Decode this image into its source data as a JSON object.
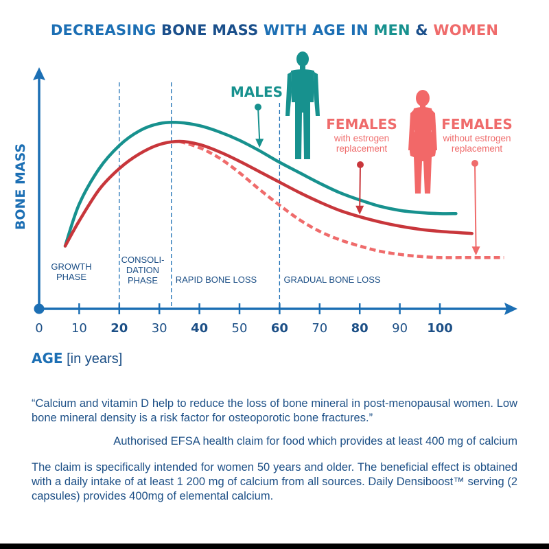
{
  "title": {
    "part1": "DECREASING ",
    "part2": "BONE MASS",
    "part3": " WITH AGE IN ",
    "part4": "MEN",
    "part5": " & ",
    "part6": "WOMEN"
  },
  "colors": {
    "axis": "#1c6fb4",
    "text": "#1c4f86",
    "males": "#17918e",
    "females_estrogen": "#c8363b",
    "females_no_estrogen": "#ef6b6b"
  },
  "icons": [
    "male-figure-icon",
    "female-figure-icon",
    "axis-arrow-icon"
  ],
  "chart_data": {
    "type": "line",
    "xlabel": "AGE",
    "xlabel_unit": "[in years]",
    "ylabel": "BONE MASS",
    "xlim": [
      0,
      120
    ],
    "ylim": [
      0,
      100
    ],
    "y_ticks_shown": false,
    "grid": false,
    "x_ticks": [
      "0",
      "10",
      "20",
      "30",
      "40",
      "50",
      "60",
      "70",
      "80",
      "90",
      "100"
    ],
    "phases": [
      {
        "lines": [
          "GROWTH",
          "PHASE"
        ],
        "start": 0,
        "end": 20
      },
      {
        "lines": [
          "CONSOLI-",
          "DATION",
          "PHASE"
        ],
        "start": 20,
        "end": 33
      },
      {
        "lines": [
          "RAPID BONE LOSS"
        ],
        "start": 33,
        "end": 60
      },
      {
        "lines": [
          "GRADUAL BONE LOSS"
        ],
        "start": 60,
        "end": 110
      }
    ],
    "series": [
      {
        "name": "MALES",
        "style": "solid",
        "x": [
          6.5,
          10,
          15,
          20,
          25,
          30,
          35,
          40,
          45,
          50,
          55,
          60,
          65,
          70,
          75,
          80,
          85,
          90,
          95,
          100,
          104
        ],
        "y": [
          30,
          50,
          67,
          78,
          85,
          88.5,
          89,
          87.5,
          84.5,
          80.5,
          75.5,
          70,
          65,
          60,
          55.5,
          52,
          49,
          47,
          46,
          45.5,
          45.5
        ]
      },
      {
        "name": "FEMALES",
        "subtitle": "with estrogen replacement",
        "style": "solid",
        "x": [
          6.5,
          10,
          15,
          20,
          25,
          30,
          35,
          40,
          45,
          50,
          55,
          60,
          65,
          70,
          75,
          80,
          85,
          90,
          95,
          100,
          108
        ],
        "y": [
          30,
          42,
          57,
          67,
          74,
          78.5,
          80,
          78.5,
          75,
          70.5,
          65.5,
          60.5,
          55.5,
          51,
          47,
          44,
          41.5,
          39.5,
          38,
          37,
          36
        ]
      },
      {
        "name": "FEMALES",
        "subtitle": "without estrogen replacement",
        "style": "dashed",
        "x": [
          35,
          40,
          45,
          50,
          55,
          60,
          65,
          70,
          75,
          80,
          85,
          90,
          95,
          100,
          105,
          110,
          116
        ],
        "y": [
          80,
          77,
          72,
          65,
          57,
          49.5,
          42.5,
          37,
          33,
          30,
          27.5,
          26,
          25,
          24.5,
          24.5,
          24.5,
          24.5
        ]
      }
    ],
    "annotations": [
      {
        "label": "MALES",
        "subtitle": "",
        "target_x": 55,
        "target_y": 76
      },
      {
        "label": "FEMALES",
        "subtitle": "with estrogen replacement",
        "target_x": 80,
        "target_y": 44
      },
      {
        "label": "FEMALES",
        "subtitle": "without estrogen replacement",
        "target_x": 109,
        "target_y": 24.5
      }
    ]
  },
  "footer": {
    "quote": "“Calcium and vitamin D help to reduce the loss of bone mineral in post-menopausal women. Low bone mineral density is a risk factor for osteoporotic bone fractures.”",
    "efsa": "Authorised EFSA health claim for food which provides at least 400 mg of calcium",
    "claim": "The claim is specifically intended for women 50 years and older. The beneficial effect is obtained with a daily intake of at least 1 200 mg of calcium from all sources. Daily Densiboost™ serving (2 capsules) provides 400mg of elemental calcium."
  }
}
